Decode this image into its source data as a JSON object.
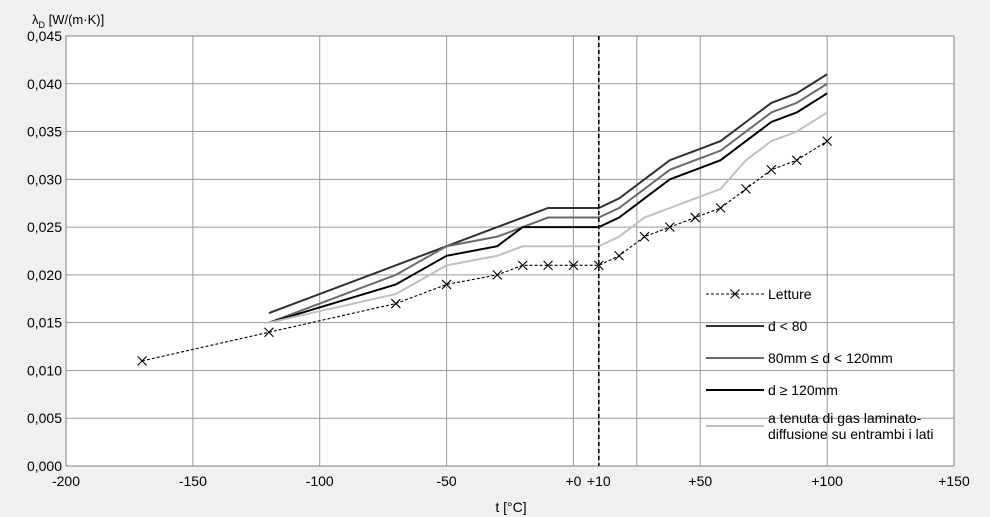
{
  "chart_data": {
    "type": "line",
    "ylabel": "λD [W/(m·K)]",
    "xlabel": "t [°C]",
    "xlim": [
      -200,
      150
    ],
    "ylim": [
      0,
      0.045
    ],
    "xticks": [
      -200,
      -150,
      -100,
      -50,
      0,
      10,
      25,
      50,
      100,
      150
    ],
    "xtick_labels": [
      "-200",
      "-150",
      "-100",
      "-50",
      "+0",
      "+10",
      "+50",
      "+100",
      "+150"
    ],
    "xtick_label_values": [
      -200,
      -150,
      -100,
      -50,
      0,
      10,
      50,
      100,
      150
    ],
    "yticks": [
      0,
      0.005,
      0.01,
      0.015,
      0.02,
      0.025,
      0.03,
      0.035,
      0.04,
      0.045
    ],
    "ytick_labels": [
      "0,000",
      "0,005",
      "0,010",
      "0,015",
      "0,020",
      "0,025",
      "0,030",
      "0,035",
      "0,040",
      "0,045"
    ],
    "dashed_vline_x": 10,
    "grid": true,
    "legend_position": "bottom-right",
    "series": [
      {
        "name": "Letture",
        "color": "#000000",
        "dashed": true,
        "marker": "x",
        "x": [
          -170,
          -120,
          -70,
          -50,
          -30,
          -20,
          -10,
          0,
          10,
          18,
          28,
          38,
          48,
          58,
          68,
          78,
          88,
          100
        ],
        "y": [
          0.011,
          0.014,
          0.017,
          0.019,
          0.02,
          0.021,
          0.021,
          0.021,
          0.021,
          0.022,
          0.024,
          0.025,
          0.026,
          0.027,
          0.029,
          0.031,
          0.032,
          0.034
        ]
      },
      {
        "name": "d < 80",
        "color": "#303030",
        "x": [
          -120,
          -70,
          -50,
          -30,
          -20,
          -10,
          0,
          10,
          18,
          28,
          38,
          48,
          58,
          68,
          78,
          88,
          100
        ],
        "y": [
          0.016,
          0.021,
          0.023,
          0.025,
          0.026,
          0.027,
          0.027,
          0.027,
          0.028,
          0.03,
          0.032,
          0.033,
          0.034,
          0.036,
          0.038,
          0.039,
          0.041
        ]
      },
      {
        "name": "80mm ≤ d < 120mm",
        "color": "#6a6a6a",
        "x": [
          -120,
          -70,
          -50,
          -30,
          -20,
          -10,
          0,
          10,
          18,
          28,
          38,
          48,
          58,
          68,
          78,
          88,
          100
        ],
        "y": [
          0.015,
          0.02,
          0.023,
          0.024,
          0.025,
          0.026,
          0.026,
          0.026,
          0.027,
          0.029,
          0.031,
          0.032,
          0.033,
          0.035,
          0.037,
          0.038,
          0.04
        ]
      },
      {
        "name": "d ≥ 120mm",
        "color": "#000000",
        "x": [
          -120,
          -70,
          -50,
          -30,
          -20,
          -10,
          0,
          10,
          18,
          28,
          38,
          48,
          58,
          68,
          78,
          88,
          100
        ],
        "y": [
          0.015,
          0.019,
          0.022,
          0.023,
          0.025,
          0.025,
          0.025,
          0.025,
          0.026,
          0.028,
          0.03,
          0.031,
          0.032,
          0.034,
          0.036,
          0.037,
          0.039
        ]
      },
      {
        "name": "a tenuta di gas laminato-diffusione su entrambi i lati",
        "name_lines": [
          "a tenuta di gas laminato-",
          "diffusione su entrambi i lati"
        ],
        "color": "#c0c0c0",
        "x": [
          -120,
          -70,
          -50,
          -30,
          -20,
          -10,
          0,
          10,
          18,
          28,
          38,
          48,
          58,
          68,
          78,
          88,
          100
        ],
        "y": [
          0.015,
          0.018,
          0.021,
          0.022,
          0.023,
          0.023,
          0.023,
          0.023,
          0.024,
          0.026,
          0.027,
          0.028,
          0.029,
          0.032,
          0.034,
          0.035,
          0.037
        ]
      }
    ]
  }
}
